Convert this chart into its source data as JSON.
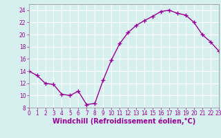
{
  "x": [
    0,
    1,
    2,
    3,
    4,
    5,
    6,
    7,
    8,
    9,
    10,
    11,
    12,
    13,
    14,
    15,
    16,
    17,
    18,
    19,
    20,
    21,
    22,
    23
  ],
  "y": [
    14.0,
    13.3,
    12.0,
    11.8,
    10.2,
    10.0,
    10.7,
    8.5,
    8.7,
    12.5,
    15.8,
    18.5,
    20.3,
    21.5,
    22.3,
    23.0,
    23.8,
    24.0,
    23.5,
    23.2,
    22.0,
    20.0,
    18.8,
    17.3
  ],
  "line_color": "#990099",
  "marker": "+",
  "marker_size": 4,
  "marker_linewidth": 1.0,
  "bg_color": "#d6f0f0",
  "grid_color": "#ffffff",
  "xlabel": "Windchill (Refroidissement éolien,°C)",
  "xlabel_color": "#990099",
  "tick_color": "#990099",
  "spine_color": "#888888",
  "xlim": [
    0,
    23
  ],
  "ylim": [
    8,
    25
  ],
  "yticks": [
    8,
    10,
    12,
    14,
    16,
    18,
    20,
    22,
    24
  ],
  "xticks": [
    0,
    1,
    2,
    3,
    4,
    5,
    6,
    7,
    8,
    9,
    10,
    11,
    12,
    13,
    14,
    15,
    16,
    17,
    18,
    19,
    20,
    21,
    22,
    23
  ],
  "xlabel_fontsize": 7,
  "tick_fontsize": 5.5
}
